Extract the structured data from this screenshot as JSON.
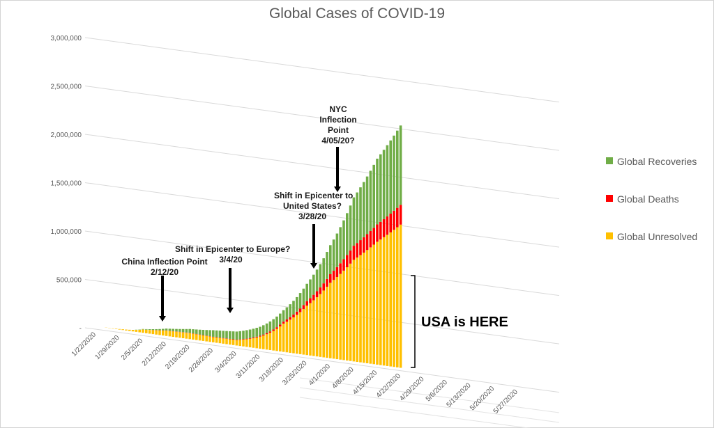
{
  "chart_data": {
    "type": "bar",
    "stacked": true,
    "title": "Global Cases of COVID-19",
    "y_tick_labels": [
      "-",
      "500,000",
      "1,000,000",
      "1,500,000",
      "2,000,000",
      "2,500,000",
      "3,000,000"
    ],
    "ylim": [
      0,
      3000000
    ],
    "x_tick_labels": [
      "1/22/2020",
      "1/29/2020",
      "2/5/2020",
      "2/12/2020",
      "2/19/2020",
      "2/26/2020",
      "3/4/2020",
      "3/11/2020",
      "3/18/2020",
      "3/25/2020",
      "4/1/2020",
      "4/8/2020",
      "4/15/2020",
      "4/22/2020",
      "4/29/2020",
      "5/6/2020",
      "5/13/2020",
      "5/20/2020",
      "5/27/2020"
    ],
    "legend_position": "right",
    "grid": true,
    "series": [
      {
        "name": "Global Unresolved",
        "color": "#FFC000",
        "key_points": [
          [
            1,
            550
          ],
          [
            8,
            5800
          ],
          [
            15,
            33000
          ],
          [
            22,
            55000
          ],
          [
            29,
            62000
          ],
          [
            36,
            54000
          ],
          [
            43,
            56000
          ],
          [
            50,
            125000
          ],
          [
            57,
            292000
          ],
          [
            64,
            510000
          ],
          [
            71,
            780000
          ],
          [
            78,
            1050000
          ],
          [
            85,
            1270000
          ],
          [
            92,
            1480000
          ]
        ]
      },
      {
        "name": "Global Deaths",
        "color": "#FF0000",
        "key_points": [
          [
            1,
            17
          ],
          [
            8,
            170
          ],
          [
            15,
            1100
          ],
          [
            22,
            2200
          ],
          [
            29,
            2900
          ],
          [
            36,
            3400
          ],
          [
            43,
            4300
          ],
          [
            50,
            8800
          ],
          [
            57,
            21000
          ],
          [
            64,
            47000
          ],
          [
            71,
            89000
          ],
          [
            78,
            146000
          ],
          [
            85,
            179000
          ],
          [
            92,
            205000
          ]
        ]
      },
      {
        "name": "Global Recoveries",
        "color": "#70AD47",
        "key_points": [
          [
            1,
            28
          ],
          [
            8,
            140
          ],
          [
            15,
            4700
          ],
          [
            22,
            19000
          ],
          [
            29,
            40000
          ],
          [
            36,
            68000
          ],
          [
            43,
            84000
          ],
          [
            50,
            93000
          ],
          [
            57,
            118000
          ],
          [
            64,
            180000
          ],
          [
            71,
            300000
          ],
          [
            78,
            500000
          ],
          [
            85,
            680000
          ],
          [
            92,
            820000
          ]
        ]
      }
    ],
    "annotations": [
      {
        "id": "china",
        "lines": [
          "China Inflection Point",
          "2/12/20"
        ]
      },
      {
        "id": "europe",
        "lines": [
          "Shift in Epicenter to Europe?",
          "3/4/20"
        ]
      },
      {
        "id": "usshift",
        "lines": [
          "Shift in Epicenter to",
          "United States?",
          "3/28/20"
        ]
      },
      {
        "id": "nyc",
        "lines": [
          "NYC",
          "Inflection",
          "Point",
          "4/05/20?"
        ]
      }
    ],
    "callout": "USA is HERE"
  }
}
